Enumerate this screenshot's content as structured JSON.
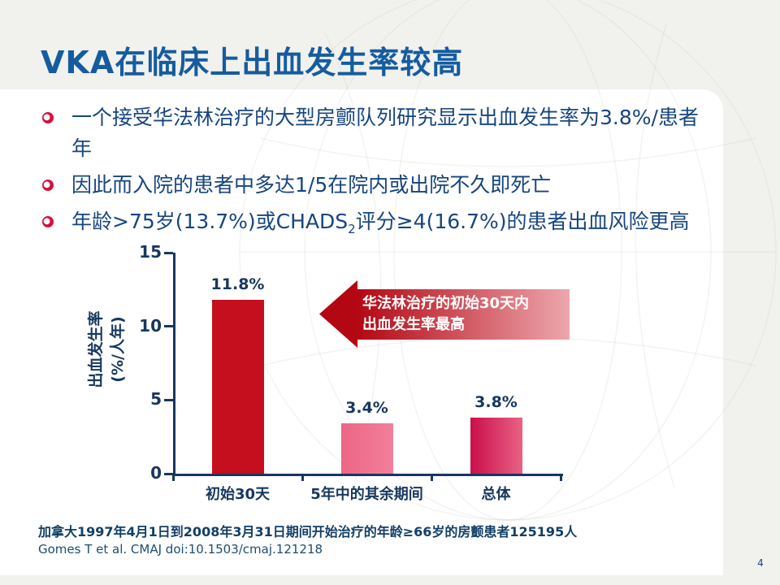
{
  "colors": {
    "title_blue": "#155c9f",
    "body_navy": "#17457e",
    "chart_navy": "#17375e",
    "bullet_red": "#d5103f",
    "arrow_dark": "#b30713",
    "arrow_light": "#eda6ad",
    "slide_gray": "#f1f1ee",
    "panel_white": "#ffffff"
  },
  "slide": {
    "title": "VKA在临床上出血发生率较高",
    "page_number": "4"
  },
  "bullets": {
    "b1": "一个接受华法林治疗的大型房颤队列研究显示出血发生率为3.8%/患者年",
    "b2": "因此而入院的患者中多达1/5在院内或出院不久即死亡",
    "b3_pre": "年龄>75岁(13.7%)或CHADS",
    "b3_sub": "2",
    "b3_post": "评分≥4(16.7%)的患者出血风险更高"
  },
  "chart_data": {
    "type": "bar",
    "title": "",
    "categories": [
      "初始30天",
      "5年中的其余期间",
      "总体"
    ],
    "values": [
      11.8,
      3.4,
      3.8
    ],
    "value_labels": [
      "11.8%",
      "3.4%",
      "3.8%"
    ],
    "ylabel": "出血发生率 (%/人年)",
    "ylabel_lines": [
      "出血发生率",
      "(%/人年)"
    ],
    "xlabel": "",
    "ylim": [
      0,
      15
    ],
    "yticks": [
      0,
      5,
      10,
      15
    ],
    "grid": false,
    "legend": "none",
    "bar_fill": [
      {
        "from": "#c60f1e",
        "to": "#c60f1e"
      },
      {
        "from": "#ee6586",
        "to": "#f0809b"
      },
      {
        "from": "#cb0e4c",
        "to": "#e86284"
      }
    ],
    "annotation": {
      "shape": "left-arrow",
      "lines": [
        "华法林治疗的初始30天内",
        "出血发生率最高"
      ]
    }
  },
  "footer": {
    "note": "加拿大1997年4月1日到2008年3月31日期间开始治疗的年龄≥66岁的房颤患者125195人",
    "citation": "Gomes T et al. CMAJ doi:10.1503/cmaj.121218"
  }
}
